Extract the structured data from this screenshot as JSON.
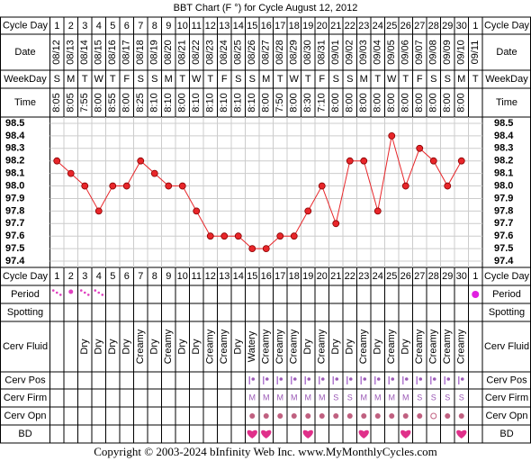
{
  "title": "BBT Chart (F °) for Cycle August 12, 2012",
  "row_labels": {
    "cycle_day": "Cycle Day",
    "date": "Date",
    "weekday": "WeekDay",
    "time": "Time",
    "period": "Period",
    "spotting": "Spotting",
    "cerv_fluid": "Cerv Fluid",
    "cerv_pos": "Cerv Pos",
    "cerv_firm": "Cerv Firm",
    "cerv_opn": "Cerv Opn",
    "bd": "BD"
  },
  "cycle_days": [
    1,
    2,
    3,
    4,
    5,
    6,
    7,
    8,
    9,
    10,
    11,
    12,
    13,
    14,
    15,
    16,
    17,
    18,
    19,
    20,
    21,
    22,
    23,
    24,
    25,
    26,
    27,
    28,
    29,
    30,
    1
  ],
  "dates": [
    "08/12",
    "08/13",
    "08/14",
    "08/15",
    "08/16",
    "08/17",
    "08/18",
    "08/19",
    "08/20",
    "08/21",
    "08/22",
    "08/23",
    "08/24",
    "08/25",
    "08/26",
    "08/27",
    "08/28",
    "08/29",
    "08/30",
    "08/31",
    "09/01",
    "09/02",
    "09/03",
    "09/04",
    "09/05",
    "09/06",
    "09/07",
    "09/08",
    "09/09",
    "09/10",
    "09/11"
  ],
  "weekdays": [
    "S",
    "M",
    "T",
    "W",
    "T",
    "F",
    "S",
    "S",
    "M",
    "T",
    "W",
    "T",
    "F",
    "S",
    "S",
    "M",
    "T",
    "W",
    "T",
    "F",
    "S",
    "S",
    "M",
    "T",
    "W",
    "T",
    "F",
    "S",
    "S",
    "M",
    "T"
  ],
  "times": [
    "8:05",
    "8:05",
    "7:55",
    "8:00",
    "8:55",
    "8:00",
    "8:25",
    "8:10",
    "8:10",
    "8:00",
    "8:10",
    "8:10",
    "8:10",
    "8:10",
    "8:10",
    "8:00",
    "7:50",
    "8:00",
    "8:30",
    "7:10",
    "8:00",
    "8:00",
    "8:00",
    "8:00",
    "8:00",
    "8:00",
    "8:00",
    "8:00",
    "8:00",
    "8:00",
    null
  ],
  "cerv_fluid": [
    null,
    null,
    "Dry",
    "Dry",
    "Dry",
    "Dry",
    "Creamy",
    "Dry",
    "Creamy",
    "Dry",
    "Dry",
    "Creamy",
    "Creamy",
    "Dry",
    "Watery",
    "Creamy",
    "Creamy",
    "Creamy",
    "Dry",
    "Creamy",
    "Dry",
    "Dry",
    "Creamy",
    "Dry",
    "Creamy",
    "Dry",
    "Creamy",
    "Creamy",
    "Creamy",
    "Creamy",
    null
  ],
  "cerv_firm": [
    null,
    null,
    null,
    null,
    null,
    null,
    null,
    null,
    null,
    null,
    null,
    null,
    null,
    null,
    "M",
    "M",
    "M",
    "M",
    "M",
    "M",
    "S",
    "S",
    "M",
    "M",
    "M",
    "M",
    "S",
    "S",
    "S",
    "S",
    null
  ],
  "chart_data": {
    "type": "line",
    "color": "#e8262a",
    "values": [
      98.2,
      98.1,
      98.0,
      97.8,
      98.0,
      98.0,
      98.2,
      98.1,
      98.0,
      98.0,
      97.8,
      97.6,
      97.6,
      97.6,
      97.5,
      97.5,
      97.6,
      97.6,
      97.8,
      98.0,
      97.7,
      98.2,
      98.2,
      97.8,
      98.4,
      98.0,
      98.3,
      98.2,
      98.0,
      98.2,
      null
    ],
    "ylim": [
      97.35,
      98.55
    ],
    "yticks": [
      98.5,
      98.4,
      98.3,
      98.2,
      98.1,
      {
        "value": 98,
        "label": "98.0"
      },
      97.9,
      97.8,
      97.7,
      97.6,
      97.5,
      97.4
    ],
    "grid": true
  },
  "footer": "Copyright © 2003-2024 bInfinity Web Inc.     www.MyMonthlyCycles.com"
}
